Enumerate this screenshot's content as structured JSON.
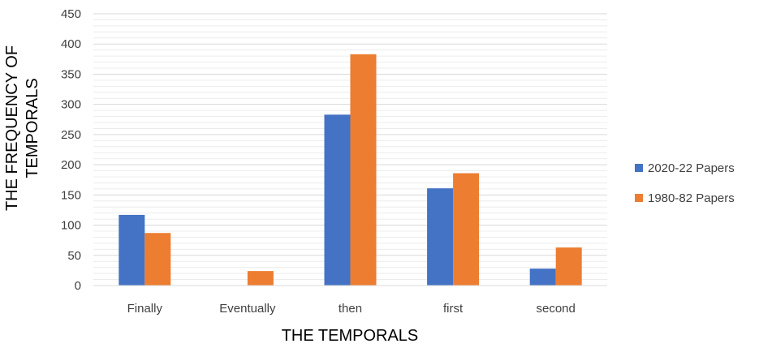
{
  "chart_data": {
    "type": "bar",
    "title": "",
    "xlabel": "THE TEMPORALS",
    "ylabel_lines": [
      "THE FREQUENCY OF",
      "TEMPORALS"
    ],
    "categories": [
      "Finally",
      "Eventually",
      "then",
      "first",
      "second"
    ],
    "series": [
      {
        "name": "2020-22 Papers",
        "color": "#4472C4",
        "values": [
          117,
          0,
          283,
          161,
          28
        ]
      },
      {
        "name": "1980-82 Papers",
        "color": "#ED7D31",
        "values": [
          87,
          24,
          383,
          186,
          63
        ]
      }
    ],
    "ylim": [
      0,
      450
    ],
    "yticks": [
      "0",
      "50",
      "100",
      "150",
      "200",
      "250",
      "300",
      "350",
      "400",
      "450"
    ],
    "ytick_values": [
      0,
      50,
      100,
      150,
      200,
      250,
      300,
      350,
      400,
      450
    ],
    "minor_gridline_step": 10,
    "grid": true,
    "legend_position": "right"
  }
}
